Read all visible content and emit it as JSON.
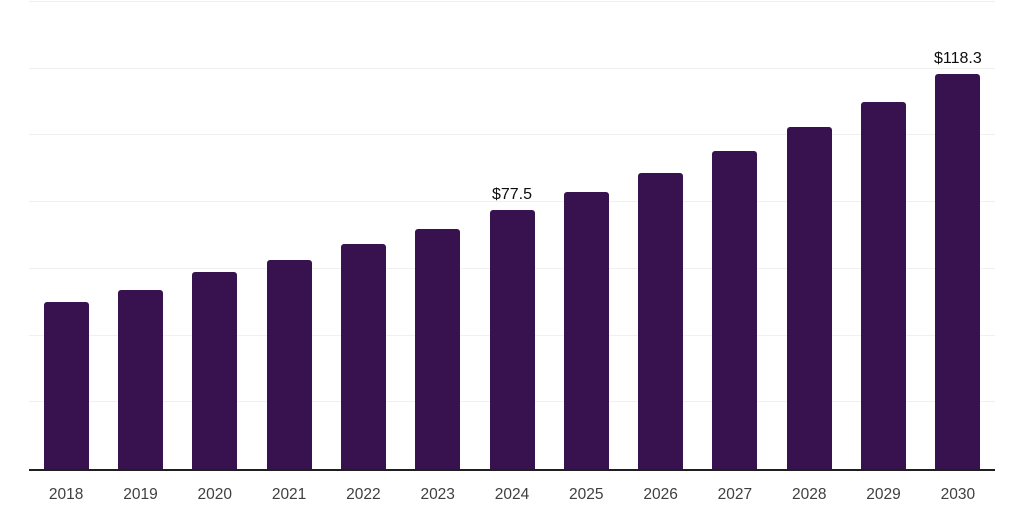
{
  "chart_data": {
    "type": "bar",
    "title": "",
    "xlabel": "",
    "ylabel": "",
    "categories": [
      "2018",
      "2019",
      "2020",
      "2021",
      "2022",
      "2023",
      "2024",
      "2025",
      "2026",
      "2027",
      "2028",
      "2029",
      "2030"
    ],
    "values": [
      50.2,
      53.8,
      59.1,
      62.8,
      67.4,
      72.1,
      77.5,
      83.0,
      88.8,
      95.3,
      102.5,
      110.1,
      118.3
    ],
    "data_labels": {
      "2024": "$77.5",
      "2030": "$118.3"
    },
    "ylim": [
      0,
      140
    ],
    "gridline_step": 20,
    "grid": "horizontal-only",
    "y_tick_labels_visible": false,
    "legend_position": "none",
    "colors": {
      "bar": "#37124F",
      "axis_line": "#1F1F1F",
      "gridline": "#F0F0F1",
      "x_tick_label": "#3F3F3F",
      "data_label": "#0D0D0D",
      "background": "#FFFFFF"
    }
  }
}
